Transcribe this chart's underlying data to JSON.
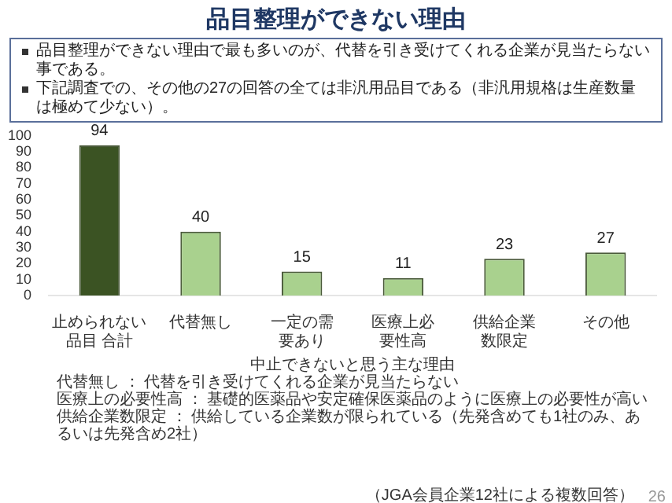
{
  "chart_data": {
    "type": "bar",
    "title": "品目整理ができない理由",
    "xlabel": "中止できないと思う主な理由",
    "categories": [
      "止められない品目 合計",
      "代替無し",
      "一定の需要あり",
      "医療上必要性高",
      "供給企業数限定",
      "その他"
    ],
    "values": [
      94,
      40,
      15,
      11,
      23,
      27
    ],
    "colors": [
      "#3b5323",
      "#a9d18e",
      "#a9d18e",
      "#a9d18e",
      "#a9d18e",
      "#a9d18e"
    ],
    "ylim": [
      0,
      100
    ],
    "yticks": [
      0,
      10,
      20,
      30,
      40,
      50,
      60,
      70,
      80,
      90,
      100
    ],
    "grid": false,
    "legend": false,
    "data_labels": true,
    "annotations": [
      "品目整理ができない理由で最も多いのが、代替を引き受けてくれる企業が見当たらない事である。",
      "下記調査での、その他の27の回答の全ては非汎用品目である（非汎用規格は生産数量は極めて少ない）。",
      "代替無し ： 代替を引き受けてくれる企業が見当たらない",
      "医療上の必要性高 ： 基礎的医薬品や安定確保医薬品のように医療上の必要性が高い",
      "供給企業数限定 ： 供給している企業数が限られている（先発含めても1社のみ、あるいは先発含め2社）",
      "（JGA会員企業12社による複数回答）",
      "26"
    ]
  }
}
